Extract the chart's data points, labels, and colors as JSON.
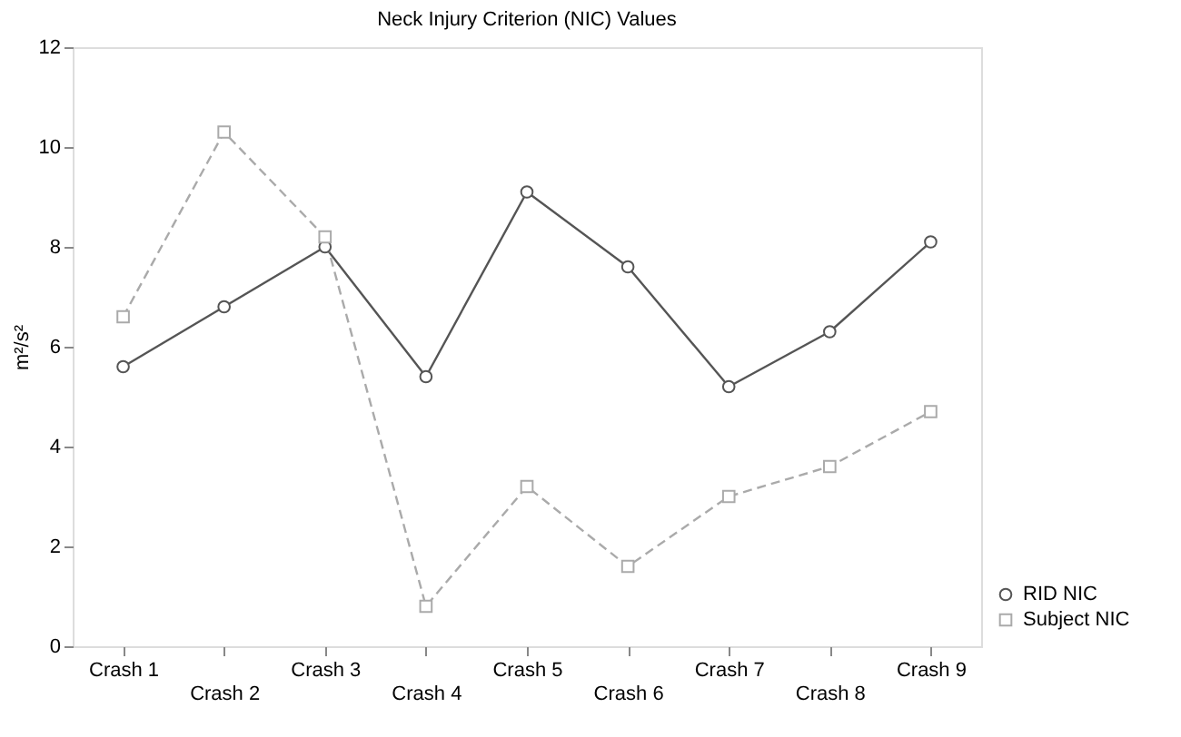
{
  "chart_data": {
    "type": "line",
    "title": "Neck Injury Criterion (NIC) Values",
    "ylabel": "m²/s²",
    "categories": [
      "Crash 1",
      "Crash 2",
      "Crash 3",
      "Crash 4",
      "Crash 5",
      "Crash 6",
      "Crash 7",
      "Crash 8",
      "Crash 9"
    ],
    "series": [
      {
        "name": "RID NIC",
        "color": "#555555",
        "marker": "circle",
        "line_style": "solid",
        "values": [
          5.6,
          6.8,
          8.0,
          5.4,
          9.1,
          7.6,
          5.2,
          6.3,
          8.1
        ]
      },
      {
        "name": "Subject NIC",
        "color": "#aaaaaa",
        "marker": "square",
        "line_style": "dashed",
        "values": [
          6.6,
          10.3,
          8.2,
          0.8,
          3.2,
          1.6,
          3.0,
          3.6,
          4.7
        ]
      }
    ],
    "ylim": [
      0,
      12
    ],
    "yticks": [
      0,
      2,
      4,
      6,
      8,
      10,
      12
    ],
    "grid": false,
    "legend": "bottom right"
  }
}
